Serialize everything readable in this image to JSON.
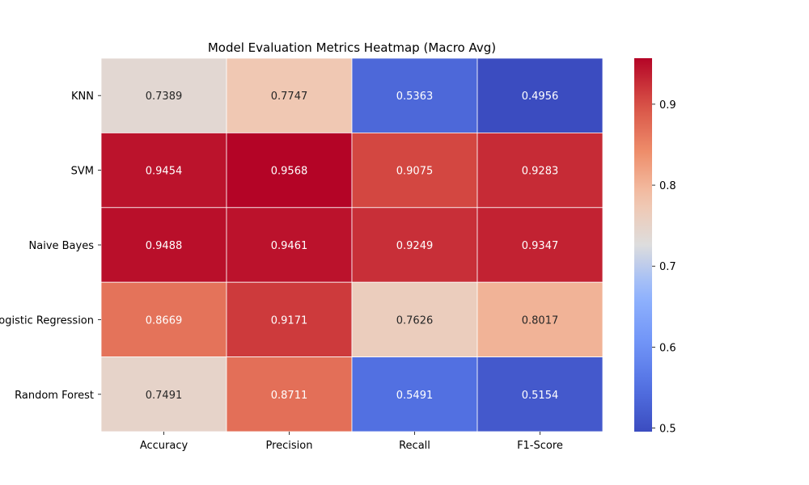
{
  "chart_data": {
    "type": "heatmap",
    "title": "Model Evaluation Metrics Heatmap (Macro Avg)",
    "xlabel": "",
    "ylabel": "",
    "x_categories": [
      "Accuracy",
      "Precision",
      "Recall",
      "F1-Score"
    ],
    "y_categories": [
      "KNN",
      "SVM",
      "Naive Bayes",
      "Logistic Regression",
      "Random Forest"
    ],
    "values": [
      [
        0.7389,
        0.7747,
        0.5363,
        0.4956
      ],
      [
        0.9454,
        0.9568,
        0.9075,
        0.9283
      ],
      [
        0.9488,
        0.9461,
        0.9249,
        0.9347
      ],
      [
        0.8669,
        0.9171,
        0.7626,
        0.8017
      ],
      [
        0.7491,
        0.8711,
        0.5491,
        0.5154
      ]
    ],
    "value_labels": [
      [
        "0.7389",
        "0.7747",
        "0.5363",
        "0.4956"
      ],
      [
        "0.9454",
        "0.9568",
        "0.9075",
        "0.9283"
      ],
      [
        "0.9488",
        "0.9461",
        "0.9249",
        "0.9347"
      ],
      [
        "0.8669",
        "0.9171",
        "0.7626",
        "0.8017"
      ],
      [
        "0.7491",
        "0.8711",
        "0.5491",
        "0.5154"
      ]
    ],
    "colormap": "coolwarm",
    "colorbar": {
      "range": [
        0.4956,
        0.9568
      ],
      "ticks": [
        0.5,
        0.6,
        0.7,
        0.8,
        0.9
      ],
      "tick_labels": [
        "0.5",
        "0.6",
        "0.7",
        "0.8",
        "0.9"
      ]
    },
    "colors": {
      "cell_border": "#ffffff",
      "dark_text": "#262626",
      "light_text": "#ffffff"
    },
    "grid": false,
    "legend": "colorbar-right"
  }
}
